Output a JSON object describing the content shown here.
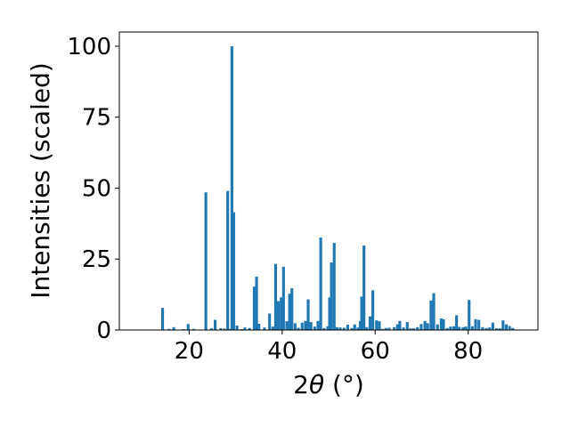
{
  "chart_data": {
    "type": "bar",
    "title": "",
    "xlabel_prefix": "2",
    "xlabel_symbol": "θ",
    "xlabel_suffix": " (°)",
    "ylabel": "Intensities (scaled)",
    "xlim": [
      5,
      95
    ],
    "ylim": [
      0,
      105
    ],
    "xticks": [
      20,
      40,
      60,
      80
    ],
    "yticks": [
      0,
      25,
      50,
      75,
      100
    ],
    "grid": false,
    "bar_color": "#1f77b4",
    "bar_width": 0.6,
    "x": [
      14.3,
      15.7,
      16.7,
      18.8,
      19.8,
      21.0,
      23.6,
      24.8,
      25.6,
      26.8,
      27.6,
      28.3,
      28.7,
      29.2,
      29.6,
      30.3,
      31.3,
      32.0,
      33.0,
      34.0,
      34.5,
      35.0,
      36.2,
      37.3,
      38.0,
      38.6,
      39.2,
      39.8,
      40.3,
      41.0,
      41.6,
      42.1,
      42.8,
      43.5,
      44.3,
      45.0,
      45.6,
      46.2,
      47.0,
      47.7,
      48.3,
      49.0,
      49.8,
      50.2,
      50.6,
      51.2,
      51.8,
      52.5,
      53.3,
      54.1,
      55.0,
      55.6,
      56.3,
      56.8,
      57.1,
      57.6,
      58.2,
      58.9,
      59.5,
      60.3,
      60.9,
      61.6,
      62.3,
      63.0,
      64.1,
      64.8,
      65.3,
      66.1,
      66.9,
      67.6,
      68.3,
      69.1,
      69.9,
      70.7,
      71.3,
      72.0,
      72.6,
      73.4,
      74.2,
      74.7,
      75.5,
      76.2,
      76.9,
      77.5,
      78.1,
      78.9,
      79.5,
      80.2,
      80.9,
      81.6,
      82.3,
      83.1,
      83.9,
      84.6,
      85.3,
      86.1,
      86.8,
      87.5,
      88.2,
      88.9,
      89.6
    ],
    "values": [
      7.8,
      0.4,
      1.0,
      0.3,
      2.1,
      0.4,
      48.5,
      0.6,
      3.6,
      0.6,
      0.5,
      49.0,
      0.4,
      100.0,
      41.5,
      1.6,
      0.3,
      0.9,
      0.7,
      15.3,
      18.8,
      2.2,
      0.9,
      5.8,
      1.2,
      23.3,
      10.2,
      11.5,
      22.3,
      3.1,
      12.8,
      14.7,
      2.4,
      0.8,
      2.6,
      3.2,
      10.8,
      2.8,
      1.2,
      3.2,
      32.6,
      0.7,
      1.3,
      11.5,
      23.8,
      30.7,
      1.0,
      0.9,
      0.8,
      1.9,
      0.7,
      2.0,
      0.9,
      3.2,
      11.8,
      29.8,
      1.0,
      4.8,
      14.0,
      3.4,
      3.1,
      0.4,
      0.7,
      0.8,
      1.0,
      2.0,
      3.2,
      0.9,
      2.8,
      0.6,
      0.6,
      1.0,
      2.1,
      3.2,
      2.4,
      10.4,
      13.0,
      2.0,
      4.1,
      3.8,
      0.7,
      1.2,
      1.3,
      5.2,
      1.1,
      1.0,
      1.2,
      10.6,
      1.3,
      3.8,
      3.6,
      1.0,
      0.7,
      0.9,
      2.6,
      0.6,
      0.6,
      3.4,
      2.0,
      1.4,
      0.7
    ]
  }
}
